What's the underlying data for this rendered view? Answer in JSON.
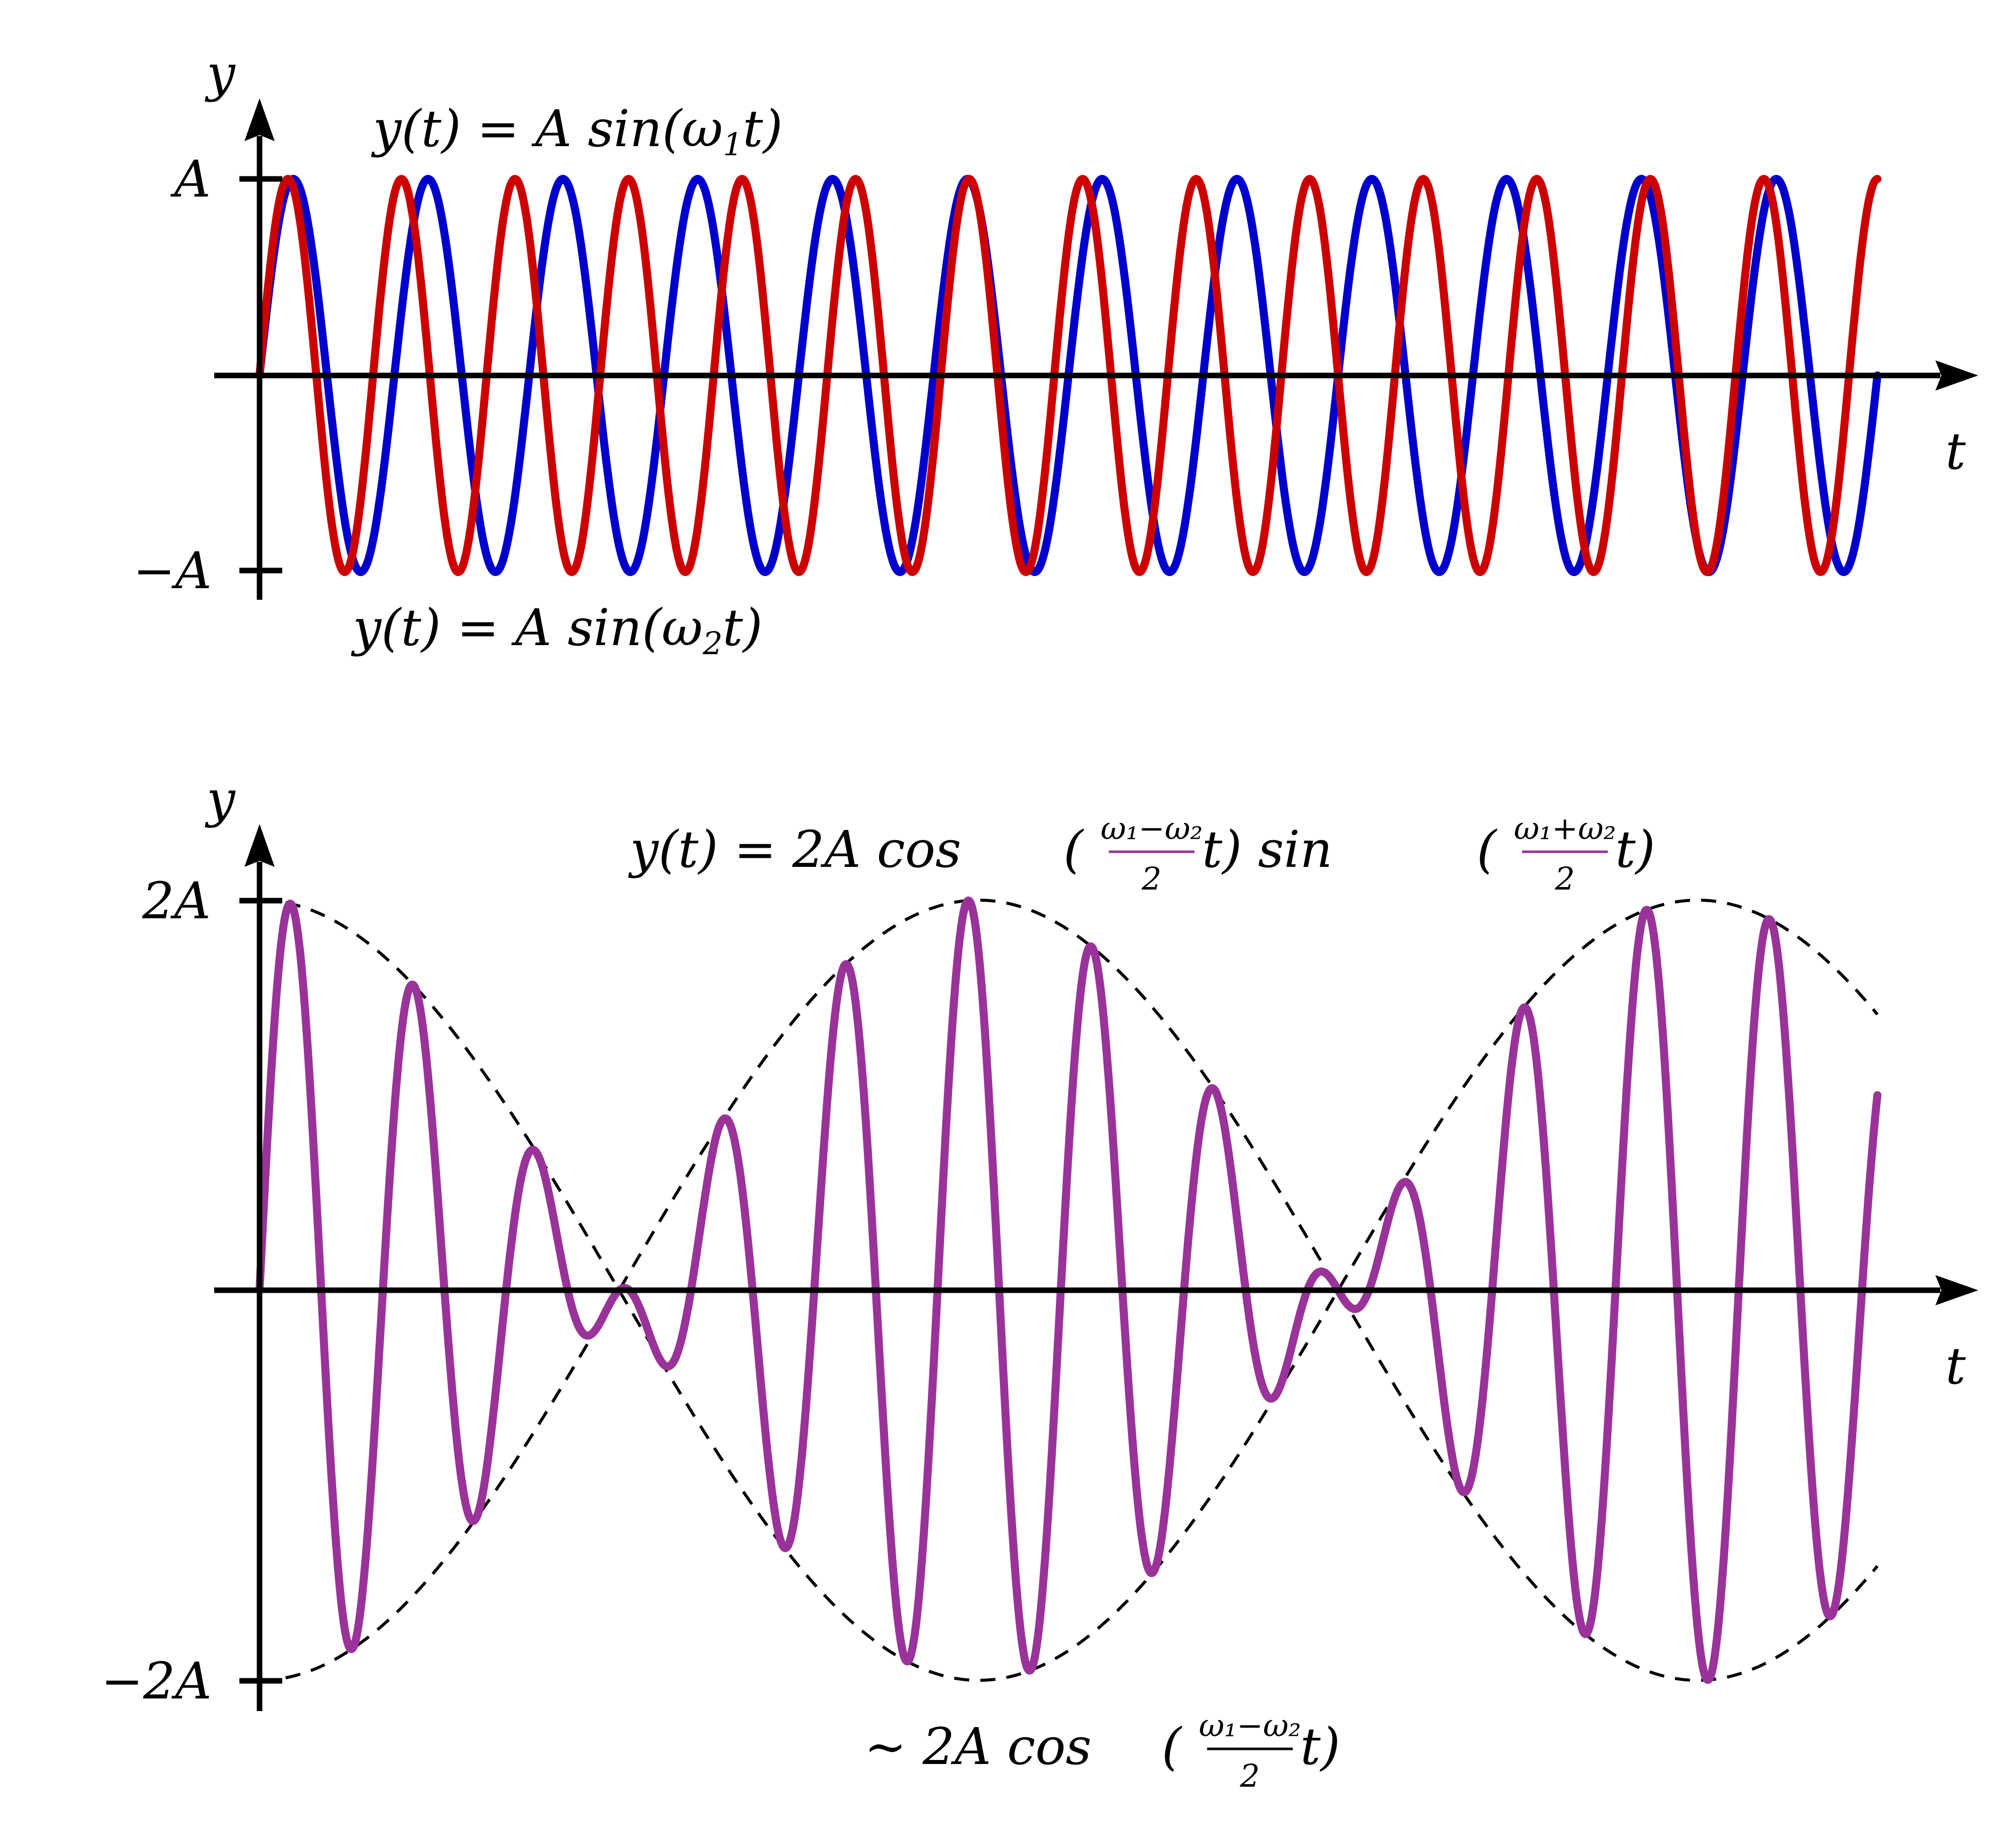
{
  "chart_data": [
    {
      "type": "line",
      "panel": "top",
      "xlabel": "t",
      "ylabel": "y",
      "y_ticks": [
        "A",
        "−A"
      ],
      "y_range": [
        -1,
        1
      ],
      "x_range": [
        0,
        1
      ],
      "series": [
        {
          "name": "y(t) = A sin(ω₁t)",
          "color": "#cc0000",
          "amplitude": 1,
          "cycles": 14.25,
          "label": {
            "pre": "y(t) = A sin(ω",
            "sub": "1",
            "post": "t)"
          }
        },
        {
          "name": "y(t) = A sin(ω₂t)",
          "color": "#0000cc",
          "amplitude": 1,
          "cycles": 12,
          "label": {
            "pre": "y(t) = A sin(ω",
            "sub": "2",
            "post": "t)"
          }
        }
      ]
    },
    {
      "type": "line",
      "panel": "bottom",
      "xlabel": "t",
      "ylabel": "y",
      "y_ticks": [
        "2A",
        "−2A"
      ],
      "y_range": [
        -2,
        2
      ],
      "x_range": [
        0,
        1
      ],
      "series": [
        {
          "name": "y(t) = 2A cos((ω₁−ω₂)/2 t) sin((ω₁+ω₂)/2 t)",
          "color": "#993399",
          "amplitude": 2,
          "cycles_w1": 14.25,
          "cycles_w2": 12,
          "label": {
            "pre": "y(t) = 2A cos",
            "frac1_num": "ω₁−ω₂",
            "frac1_den": "2",
            "mid": "t) sin",
            "frac2_num": "ω₁+ω₂",
            "frac2_den": "2",
            "post": "t)"
          }
        },
        {
          "name": "∼ 2A cos((ω₁−ω₂)/2 t)",
          "color": "#000000",
          "style": "dashed",
          "envelope": true,
          "label": {
            "pre": "∼ 2A cos",
            "frac_num": "ω₁−ω₂",
            "frac_den": "2",
            "post": "t)"
          }
        }
      ]
    }
  ]
}
